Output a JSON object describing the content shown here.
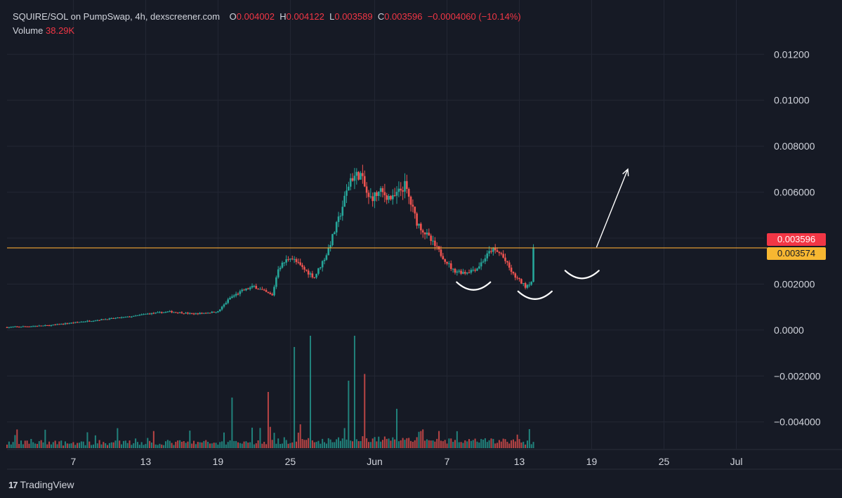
{
  "header": {
    "symbol": "SQUIRE/SOL on PumpSwap, 4h, dexscreener.com",
    "o_label": "O",
    "o_value": "0.004002",
    "h_label": "H",
    "h_value": "0.004122",
    "l_label": "L",
    "l_value": "0.003589",
    "c_label": "C",
    "c_value": "0.003596",
    "change": "−0.0004060 (−10.14%)",
    "volume_label": "Volume",
    "volume_value": "38.29K"
  },
  "price_tags": {
    "last": "0.003596",
    "line": "0.003574"
  },
  "footer": {
    "brand": "TradingView",
    "logo": "17"
  },
  "colors": {
    "up": "#26a69a",
    "down": "#ef5350",
    "background": "#161a25",
    "grid": "#232734",
    "hline": "#f7a833",
    "text": "#d1d4dc",
    "tag_red": "#f23645",
    "tag_orange": "#f7b731"
  },
  "chart_data": {
    "type": "candlestick",
    "title": "SQUIRE/SOL on PumpSwap, 4h, dexscreener.com",
    "y_ticks": [
      "0.01200",
      "0.01000",
      "0.008000",
      "0.006000",
      "0.004000",
      "0.002000",
      "0.0000",
      "−0.002000",
      "−0.004000"
    ],
    "y_tick_values": [
      0.012,
      0.01,
      0.008,
      0.006,
      0.004,
      0.002,
      0.0,
      -0.002,
      -0.004
    ],
    "ylim": [
      -0.0052,
      0.0132
    ],
    "x_ticks": [
      "7",
      "13",
      "19",
      "25",
      "Jun",
      "7",
      "13",
      "19",
      "25",
      "Jul"
    ],
    "x_tick_days": [
      7,
      13,
      19,
      25,
      32,
      38,
      44,
      50,
      56,
      62
    ],
    "xlim": [
      1.5,
      64.3
    ],
    "candle_days": [
      1.5,
      45.2
    ],
    "horizontal_line": 0.003574,
    "last_price": 0.003596,
    "anchors": [
      [
        1.5,
        0.00012
      ],
      [
        5,
        0.0002
      ],
      [
        8,
        0.00038
      ],
      [
        12,
        0.0006
      ],
      [
        13,
        0.0007
      ],
      [
        15,
        0.0008
      ],
      [
        17,
        0.0007
      ],
      [
        19,
        0.0008
      ],
      [
        20,
        0.0014
      ],
      [
        21,
        0.0017
      ],
      [
        22,
        0.0019
      ],
      [
        23.5,
        0.0015
      ],
      [
        24,
        0.0027
      ],
      [
        25,
        0.0032
      ],
      [
        26,
        0.0027
      ],
      [
        27,
        0.0023
      ],
      [
        28,
        0.0033
      ],
      [
        29,
        0.0048
      ],
      [
        30,
        0.0066
      ],
      [
        30.8,
        0.0068
      ],
      [
        31.5,
        0.0057
      ],
      [
        32.5,
        0.006
      ],
      [
        33.5,
        0.0057
      ],
      [
        34.5,
        0.0063
      ],
      [
        35.5,
        0.0047
      ],
      [
        36.5,
        0.004
      ],
      [
        37.5,
        0.0033
      ],
      [
        38.5,
        0.0026
      ],
      [
        39.5,
        0.0025
      ],
      [
        40.5,
        0.0027
      ],
      [
        41.7,
        0.0035
      ],
      [
        42.5,
        0.0033
      ],
      [
        43.5,
        0.0024
      ],
      [
        44.5,
        0.0019
      ],
      [
        45.2,
        0.0022
      ],
      [
        46.2,
        0.0031
      ],
      [
        46.8,
        0.0034
      ],
      [
        47.5,
        0.0029
      ],
      [
        48.4,
        0.0025
      ],
      [
        49.5,
        0.0031
      ],
      [
        50,
        0.004
      ],
      [
        50.5,
        0.0036
      ]
    ],
    "volume_spikes": [
      [
        25.3,
        0.9
      ],
      [
        26.6,
        0.62
      ],
      [
        30.4,
        1.0
      ],
      [
        31.2,
        0.66
      ],
      [
        23.2,
        0.5
      ],
      [
        29.8,
        0.6
      ],
      [
        20.2,
        0.45
      ],
      [
        47.4,
        0.37
      ],
      [
        50.2,
        0.25
      ],
      [
        33.8,
        0.35
      ]
    ],
    "annotations": {
      "arcs": [
        [
          40.2,
          0.0019
        ],
        [
          45.3,
          0.0015
        ],
        [
          49.2,
          0.0024
        ]
      ],
      "arrow": {
        "from": [
          50.4,
          0.0036
        ],
        "to": [
          53.0,
          0.007
        ]
      }
    }
  }
}
